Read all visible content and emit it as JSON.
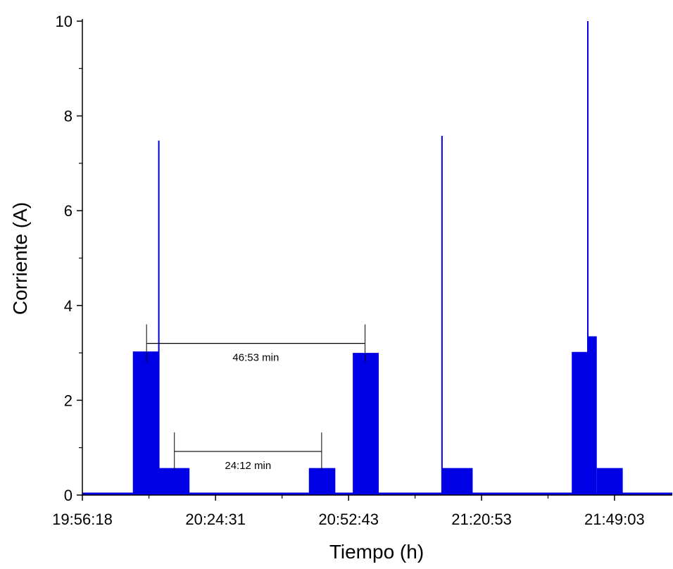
{
  "chart_data": {
    "type": "line",
    "xlabel": "Tiempo (h)",
    "ylabel": "Corriente (A)",
    "x_unit": "minutes",
    "xlim": [
      0,
      125
    ],
    "ylim": [
      0,
      10
    ],
    "x_ticks": [
      {
        "value": 0,
        "label": "19:56:18"
      },
      {
        "value": 28.2167,
        "label": "20:24:31"
      },
      {
        "value": 56.4167,
        "label": "20:52:43"
      },
      {
        "value": 84.5833,
        "label": "21:20:53"
      },
      {
        "value": 112.75,
        "label": "21:49:03"
      }
    ],
    "y_ticks": [
      0,
      2,
      4,
      6,
      8,
      10
    ],
    "grid": false,
    "legend": "none",
    "color": "#0000e6",
    "series": [
      {
        "bands": [
          {
            "x0": 10.7,
            "x1": 16.2,
            "low": 0.03,
            "high": 3.03
          },
          {
            "x0": 16.2,
            "x1": 22.7,
            "low": 0.03,
            "high": 0.57
          },
          {
            "x0": 48.0,
            "x1": 53.6,
            "low": 0.03,
            "high": 0.57
          },
          {
            "x0": 57.3,
            "x1": 62.8,
            "low": 0.03,
            "high": 3.0
          },
          {
            "x0": 76.2,
            "x1": 82.7,
            "low": 0.03,
            "high": 0.57
          },
          {
            "x0": 103.7,
            "x1": 107.2,
            "low": 0.03,
            "high": 3.02
          },
          {
            "x0": 107.2,
            "x1": 109.0,
            "low": 0.03,
            "high": 3.35
          },
          {
            "x0": 109.0,
            "x1": 114.5,
            "low": 0.03,
            "high": 0.57
          }
        ],
        "spikes": [
          {
            "x": 16.2,
            "peak": 7.48
          },
          {
            "x": 76.2,
            "peak": 7.58
          },
          {
            "x": 107.1,
            "peak": 10.0
          }
        ],
        "baseline": 0.03
      }
    ],
    "annotations": [
      {
        "label": "46:53 min",
        "x0": 13.6,
        "x1": 59.9,
        "y": 3.2
      },
      {
        "label": "24:12 min",
        "x0": 19.5,
        "x1": 50.7,
        "y": 0.92
      }
    ]
  }
}
